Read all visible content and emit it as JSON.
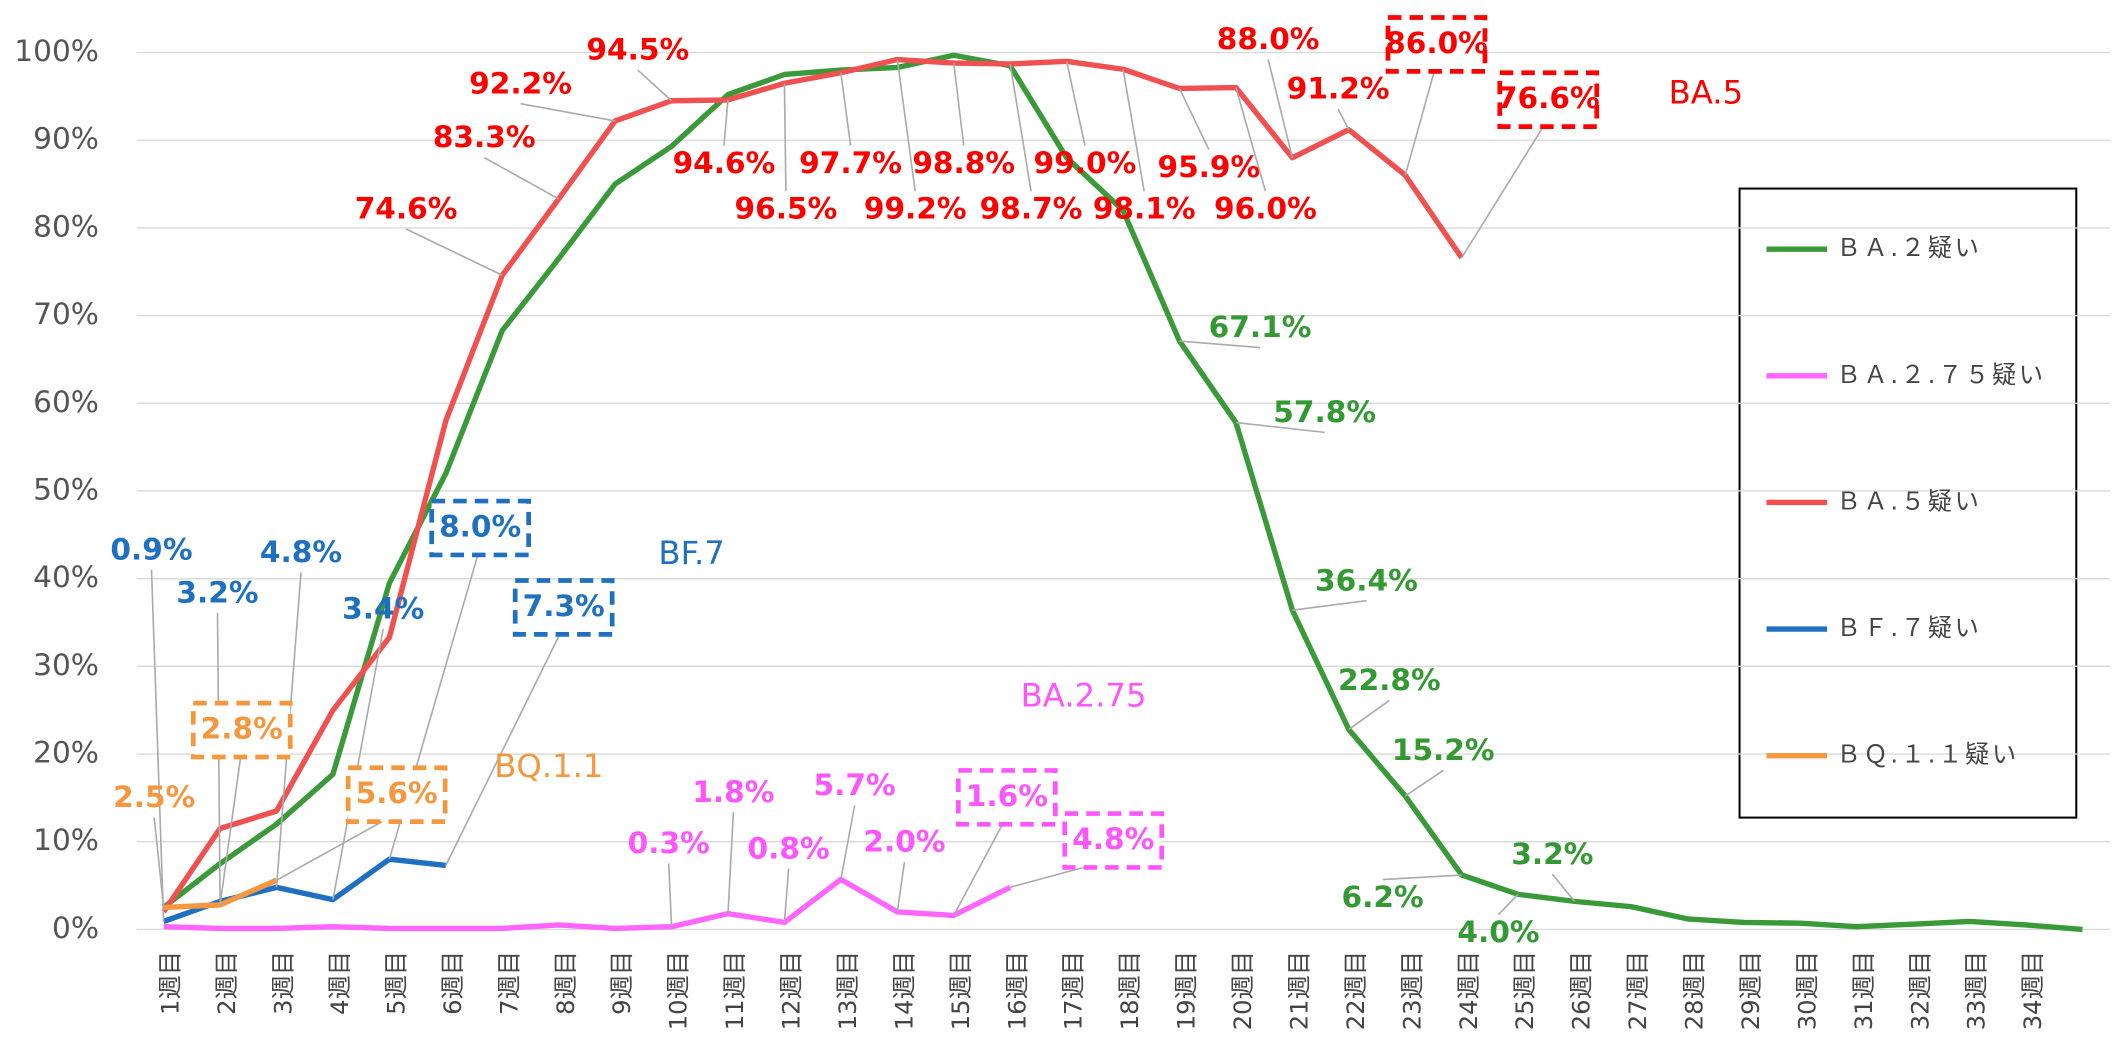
{
  "chart_data": {
    "type": "line",
    "categories": [
      "1週目",
      "2週目",
      "3週目",
      "4週目",
      "5週目",
      "6週目",
      "7週目",
      "8週目",
      "9週目",
      "10週目",
      "11週目",
      "12週目",
      "13週目",
      "14週目",
      "15週目",
      "16週目",
      "17週目",
      "18週目",
      "19週目",
      "20週目",
      "21週目",
      "22週目",
      "23週目",
      "24週目",
      "25週目",
      "26週目",
      "27週目",
      "28週目",
      "29週目",
      "30週目",
      "31週目",
      "32週目",
      "33週目",
      "34週目",
      null
    ],
    "ylim": [
      0,
      100
    ],
    "yticks": [
      {
        "value": 0,
        "label": "0%"
      },
      {
        "value": 10,
        "label": "10%"
      },
      {
        "value": 20,
        "label": "20%"
      },
      {
        "value": 30,
        "label": "30%"
      },
      {
        "value": 40,
        "label": "40%"
      },
      {
        "value": 50,
        "label": "50%"
      },
      {
        "value": 60,
        "label": "60%"
      },
      {
        "value": 70,
        "label": "70%"
      },
      {
        "value": 80,
        "label": "80%"
      },
      {
        "value": 90,
        "label": "90%"
      },
      {
        "value": 100,
        "label": "100%"
      }
    ],
    "grid": true,
    "legend": "right",
    "series": [
      {
        "name": "ＢＡ.２疑い",
        "color": "#3a9a3a",
        "label_color": "#339933",
        "values": [
          2.5,
          7.5,
          12,
          17.7,
          39.5,
          52,
          68.3,
          76.5,
          85,
          89.3,
          95.2,
          97.5,
          98,
          98.3,
          99.7,
          98.5,
          88,
          82,
          67.1,
          57.8,
          36.4,
          22.8,
          15.2,
          6.2,
          4.0,
          3.2,
          2.6,
          1.2,
          0.8,
          0.7,
          0.3,
          0.6,
          0.9,
          0.5,
          0
        ],
        "value_labels": [
          null,
          null,
          null,
          null,
          null,
          null,
          null,
          null,
          null,
          null,
          null,
          null,
          null,
          null,
          null,
          null,
          null,
          null,
          "67.1%",
          "57.8%",
          "36.4%",
          "22.8%",
          "15.2%",
          "6.2%",
          "4.0%",
          "3.2%",
          null,
          null,
          null,
          null,
          null,
          null,
          null,
          null,
          null
        ]
      },
      {
        "name": "ＢＡ.２.７５疑い",
        "color": "#ff66ff",
        "label_color": "#ff55ff",
        "values": [
          0.3,
          0.1,
          0.1,
          0.3,
          0.1,
          0.1,
          0.1,
          0.5,
          0.1,
          0.3,
          1.8,
          0.8,
          5.7,
          2.0,
          1.6,
          4.8,
          null,
          null,
          null,
          null,
          null,
          null,
          null,
          null,
          null,
          null,
          null,
          null,
          null,
          null,
          null,
          null,
          null,
          null,
          null
        ],
        "value_labels": [
          null,
          null,
          null,
          null,
          null,
          null,
          null,
          null,
          null,
          "0.3%",
          "1.8%",
          "0.8%",
          "5.7%",
          "2.0%",
          "1.6%",
          "4.8%",
          null,
          null,
          null,
          null,
          null,
          null,
          null,
          null,
          null,
          null,
          null,
          null,
          null,
          null,
          null,
          null,
          null,
          null,
          null
        ]
      },
      {
        "name": "ＢＡ.５疑い",
        "color": "#f05050",
        "label_color": "#ff0000",
        "values": [
          2,
          11.5,
          13.5,
          25,
          33.3,
          58,
          74.6,
          83.3,
          92.2,
          94.5,
          94.6,
          96.5,
          97.7,
          99.2,
          98.8,
          98.7,
          99.0,
          98.1,
          95.9,
          96.0,
          88.0,
          91.2,
          86.0,
          76.6,
          null,
          null,
          null,
          null,
          null,
          null,
          null,
          null,
          null,
          null,
          null
        ],
        "value_labels": [
          null,
          null,
          null,
          null,
          null,
          null,
          "74.6%",
          "83.3%",
          "92.2%",
          "94.5%",
          "94.6%",
          "96.5%",
          "97.7%",
          "99.2%",
          "98.8%",
          "98.7%",
          "99.0%",
          "98.1%",
          "95.9%",
          "96.0%",
          "88.0%",
          "91.2%",
          "86.0%",
          "76.6%",
          null,
          null,
          null,
          null,
          null,
          null,
          null,
          null,
          null,
          null,
          null
        ]
      },
      {
        "name": "ＢＦ.７疑い",
        "color": "#1f70c0",
        "label_color": "#1f70c0",
        "values": [
          0.9,
          3.2,
          4.8,
          3.4,
          8.0,
          7.3,
          null,
          null,
          null,
          null,
          null,
          null,
          null,
          null,
          null,
          null,
          null,
          null,
          null,
          null,
          null,
          null,
          null,
          null,
          null,
          null,
          null,
          null,
          null,
          null,
          null,
          null,
          null,
          null,
          null
        ],
        "value_labels": [
          "0.9%",
          "3.2%",
          "4.8%",
          "3.4%",
          "8.0%",
          "7.3%",
          null,
          null,
          null,
          null,
          null,
          null,
          null,
          null,
          null,
          null,
          null,
          null,
          null,
          null,
          null,
          null,
          null,
          null,
          null,
          null,
          null,
          null,
          null,
          null,
          null,
          null,
          null,
          null,
          null
        ]
      },
      {
        "name": "ＢＱ.１.１疑い",
        "color": "#f5973f",
        "label_color": "#f5973f",
        "values": [
          2.5,
          2.8,
          5.6,
          null,
          null,
          null,
          null,
          null,
          null,
          null,
          null,
          null,
          null,
          null,
          null,
          null,
          null,
          null,
          null,
          null,
          null,
          null,
          null,
          null,
          null,
          null,
          null,
          null,
          null,
          null,
          null,
          null,
          null,
          null,
          null
        ],
        "value_labels": [
          "2.5%",
          "2.8%",
          "5.6%",
          null,
          null,
          null,
          null,
          null,
          null,
          null,
          null,
          null,
          null,
          null,
          null,
          null,
          null,
          null,
          null,
          null,
          null,
          null,
          null,
          null,
          null,
          null,
          null,
          null,
          null,
          null,
          null,
          null,
          null,
          null,
          null
        ]
      }
    ],
    "annotations": [
      {
        "text": "BA.5",
        "color": "#ff0000"
      },
      {
        "text": "BF.7",
        "color": "#1f70c0"
      },
      {
        "text": "BA.2.75",
        "color": "#ff55ff"
      },
      {
        "text": "BQ.1.1",
        "color": "#f5973f"
      }
    ]
  }
}
